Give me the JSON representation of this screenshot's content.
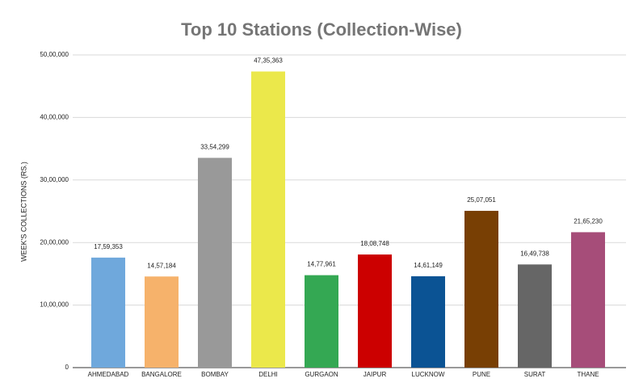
{
  "chart_data": {
    "type": "bar",
    "title": "Top 10 Stations (Collection-Wise)",
    "y_label": "WEEK'S COLLECTIONS (RS.)",
    "categories": [
      "AHMEDABAD",
      "BANGALORE",
      "BOMBAY",
      "DELHI",
      "GURGAON",
      "JAIPUR",
      "LUCKNOW",
      "PUNE",
      "SURAT",
      "THANE"
    ],
    "values": [
      1759353,
      1457184,
      3354299,
      4735363,
      1477961,
      1808748,
      1461149,
      2507051,
      1649738,
      2165230
    ],
    "value_labels": [
      "17,59,353",
      "14,57,184",
      "33,54,299",
      "47,35,363",
      "14,77,961",
      "18,08,748",
      "14,61,149",
      "25,07,051",
      "16,49,738",
      "21,65,230"
    ],
    "colors": [
      "#6fa8dc",
      "#f6b26b",
      "#999999",
      "#ebe84b",
      "#34a853",
      "#cc0000",
      "#0b5394",
      "#783f04",
      "#666666",
      "#a64d79"
    ],
    "ylim": [
      0,
      5000000
    ],
    "yticks": [
      0,
      {
        "value": 1000000,
        "label": "10,00,000"
      },
      {
        "value": 2000000,
        "label": "20,00,000"
      },
      {
        "value": 3000000,
        "label": "30,00,000"
      },
      {
        "value": 4000000,
        "label": "40,00,000"
      },
      {
        "value": 5000000,
        "label": "50,00,000"
      }
    ],
    "grid": true
  }
}
